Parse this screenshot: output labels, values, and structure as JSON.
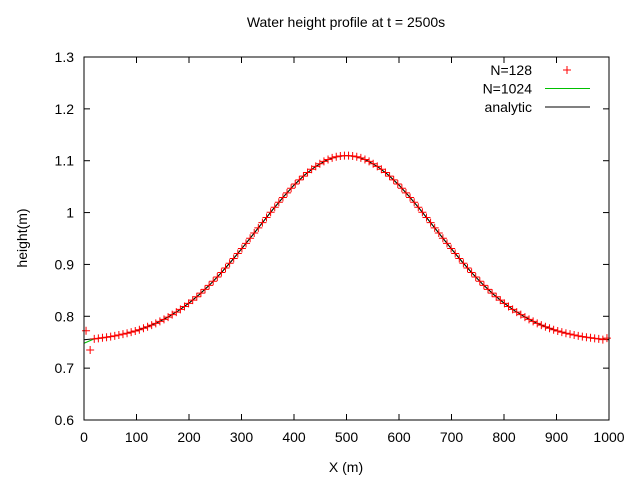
{
  "chart_data": {
    "type": "line",
    "title": "Water height profile at t = 2500s",
    "xlabel": "X (m)",
    "ylabel": "height(m)",
    "xlim": [
      0,
      1000
    ],
    "ylim": [
      0.6,
      1.3
    ],
    "xticks": [
      "0",
      "100",
      "200",
      "300",
      "400",
      "500",
      "600",
      "700",
      "800",
      "900",
      "1000"
    ],
    "yticks": [
      "0.6",
      "0.7",
      "0.8",
      "0.9",
      "1",
      "1.1",
      "1.2",
      "1.3"
    ],
    "grid": false,
    "legend_position": "top-right",
    "series": [
      {
        "name": "N=128",
        "style": "points-plus",
        "color": "#ff0000",
        "y": [
          0.772,
          0.735,
          0.7565,
          0.7574,
          0.7585,
          0.7596,
          0.7608,
          0.7622,
          0.7638,
          0.7655,
          0.7674,
          0.7694,
          0.7717,
          0.7741,
          0.7769,
          0.7798,
          0.783,
          0.7864,
          0.7901,
          0.7941,
          0.7985,
          0.8031,
          0.808,
          0.8133,
          0.8189,
          0.8248,
          0.8311,
          0.8377,
          0.8447,
          0.852,
          0.8596,
          0.8675,
          0.8758,
          0.8844,
          0.8932,
          0.9022,
          0.9115,
          0.9211,
          0.9308,
          0.9406,
          0.9505,
          0.9605,
          0.9706,
          0.9806,
          0.9906,
          1.0005,
          1.0102,
          1.0198,
          1.0291,
          1.0381,
          1.0468,
          1.0551,
          1.063,
          1.0703,
          1.0772,
          1.0835,
          1.0892,
          1.0942,
          1.0987,
          1.1024,
          1.1054,
          1.1076,
          1.1091,
          1.1099,
          1.1099,
          1.1091,
          1.1076,
          1.1054,
          1.1024,
          1.0987,
          1.0942,
          1.0892,
          1.0835,
          1.0772,
          1.0703,
          1.063,
          1.0551,
          1.0468,
          1.0381,
          1.0291,
          1.0198,
          1.0102,
          1.0005,
          0.9906,
          0.9806,
          0.9706,
          0.9605,
          0.9505,
          0.9406,
          0.9308,
          0.9211,
          0.9115,
          0.9022,
          0.8932,
          0.8844,
          0.8758,
          0.8675,
          0.8596,
          0.852,
          0.8447,
          0.8377,
          0.8311,
          0.8248,
          0.8189,
          0.8133,
          0.808,
          0.8031,
          0.7985,
          0.7941,
          0.7901,
          0.7864,
          0.783,
          0.7798,
          0.7769,
          0.7741,
          0.7717,
          0.7694,
          0.7674,
          0.7655,
          0.7638,
          0.7622,
          0.7608,
          0.7596,
          0.7585,
          0.7574,
          0.7565,
          0.755,
          0.758
        ]
      },
      {
        "name": "N=1024",
        "style": "line",
        "color": "#00c000",
        "x": [
          0,
          20,
          40,
          60,
          80,
          100,
          120,
          140,
          160,
          180,
          200,
          220,
          240,
          260,
          280,
          300,
          320,
          340,
          360,
          380,
          400,
          420,
          440,
          460,
          480,
          500,
          520,
          540,
          560,
          580,
          600,
          620,
          640,
          660,
          680,
          700,
          720,
          740,
          760,
          780,
          800,
          820,
          840,
          860,
          880,
          900,
          920,
          940,
          960,
          980,
          1000
        ],
        "y": [
          0.748,
          0.7566,
          0.7591,
          0.7625,
          0.7668,
          0.7723,
          0.7794,
          0.7879,
          0.7985,
          0.8109,
          0.8255,
          0.8423,
          0.8612,
          0.8824,
          0.9054,
          0.9298,
          0.9551,
          0.9808,
          1.0062,
          1.0304,
          1.053,
          1.0722,
          1.0881,
          1.1001,
          1.1075,
          1.11,
          1.1075,
          1.1001,
          1.0881,
          1.0722,
          1.053,
          1.0304,
          1.0062,
          0.9808,
          0.9551,
          0.9298,
          0.9054,
          0.8824,
          0.8612,
          0.8423,
          0.8255,
          0.8109,
          0.7985,
          0.7879,
          0.7794,
          0.7723,
          0.7668,
          0.7625,
          0.7591,
          0.7566,
          0.755
        ]
      },
      {
        "name": "analytic",
        "style": "line",
        "color": "#000000",
        "x": [
          0,
          20,
          40,
          60,
          80,
          100,
          120,
          140,
          160,
          180,
          200,
          220,
          240,
          260,
          280,
          300,
          320,
          340,
          360,
          380,
          400,
          420,
          440,
          460,
          480,
          500,
          520,
          540,
          560,
          580,
          600,
          620,
          640,
          660,
          680,
          700,
          720,
          740,
          760,
          780,
          800,
          820,
          840,
          860,
          880,
          900,
          920,
          940,
          960,
          980,
          1000
        ],
        "y": [
          0.7547,
          0.7566,
          0.7591,
          0.7625,
          0.7668,
          0.7723,
          0.7794,
          0.7879,
          0.7985,
          0.8109,
          0.8255,
          0.8423,
          0.8612,
          0.8824,
          0.9054,
          0.9298,
          0.9551,
          0.9808,
          1.0062,
          1.0304,
          1.053,
          1.0722,
          1.0881,
          1.1001,
          1.1075,
          1.11,
          1.1075,
          1.1001,
          1.0881,
          1.0722,
          1.053,
          1.0304,
          1.0062,
          0.9808,
          0.9551,
          0.9298,
          0.9054,
          0.8824,
          0.8612,
          0.8423,
          0.8255,
          0.8109,
          0.7985,
          0.7879,
          0.7794,
          0.7723,
          0.7668,
          0.7625,
          0.7591,
          0.7566,
          0.7547
        ]
      }
    ]
  }
}
